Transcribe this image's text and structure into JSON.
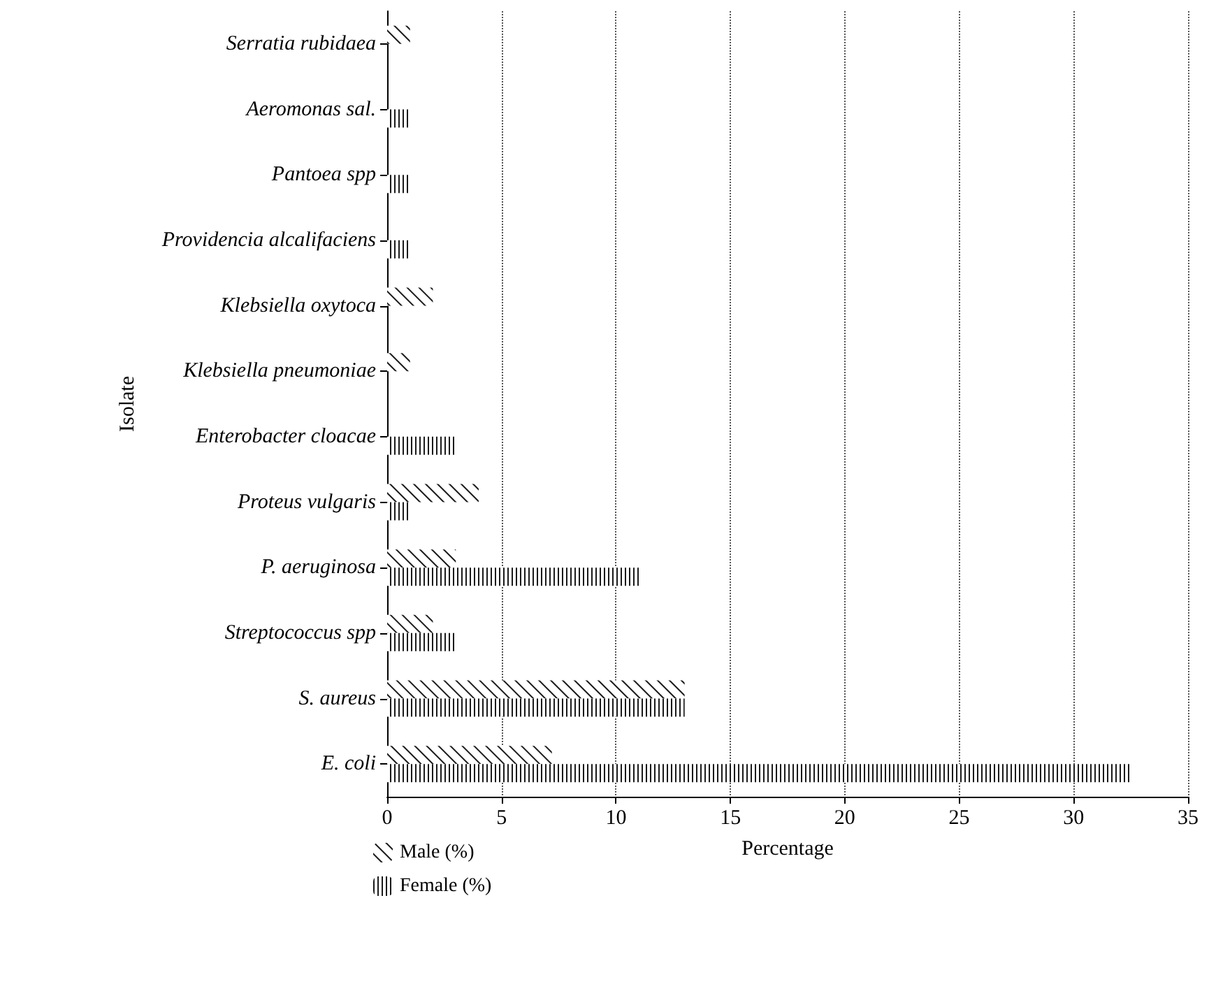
{
  "chart_data": {
    "type": "bar",
    "orientation": "horizontal",
    "xlabel": "Percentage",
    "ylabel": "Isolate",
    "categories": [
      "Serratia rubidaea",
      "Aeromonas sal.",
      "Pantoea spp",
      "Providencia alcalifaciens",
      "Klebsiella oxytoca",
      "Klebsiella pneumoniae",
      "Enterobacter cloacae",
      "Proteus vulgaris",
      "P. aeruginosa",
      "Streptococcus spp",
      "S. aureus",
      "E. coli"
    ],
    "series": [
      {
        "name": "Male (%)",
        "color": "#1a1a1a",
        "values": [
          1,
          null,
          null,
          null,
          2,
          1,
          null,
          4,
          3,
          2,
          13,
          7.2
        ]
      },
      {
        "name": "Female (%)",
        "color": "#1a1a1a",
        "values": [
          null,
          1,
          1,
          1,
          null,
          null,
          3,
          1,
          11,
          3,
          13,
          32.5
        ]
      }
    ],
    "xlim": [
      0,
      35
    ],
    "xticks": [
      0,
      5,
      10,
      15,
      20,
      25,
      30,
      35
    ],
    "grid": "x",
    "legend": "bottom"
  }
}
